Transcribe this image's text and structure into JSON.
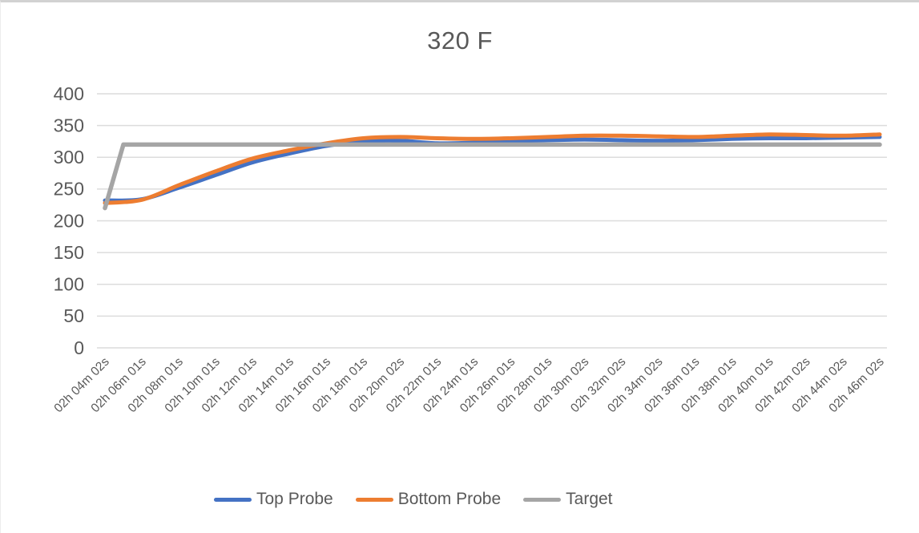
{
  "chart_data": {
    "type": "line",
    "title": "320 F",
    "xlabel": "",
    "ylabel": "",
    "ylim": [
      0,
      400
    ],
    "y_ticks": [
      0,
      50,
      100,
      150,
      200,
      250,
      300,
      350,
      400
    ],
    "grid": true,
    "legend_position": "bottom",
    "grid_color": "#dcdcdc",
    "text_color": "#595959",
    "categories": [
      "02h 04m 02s",
      "02h 06m 01s",
      "02h 08m 01s",
      "02h 10m 01s",
      "02h 12m 01s",
      "02h 14m 01s",
      "02h 16m 01s",
      "02h 18m 01s",
      "02h 20m 02s",
      "02h 22m 01s",
      "02h 24m 01s",
      "02h 26m 01s",
      "02h 28m 01s",
      "02h 30m 02s",
      "02h 32m 02s",
      "02h 34m 02s",
      "02h 36m 01s",
      "02h 38m 01s",
      "02h 40m 01s",
      "02h 42m 02s",
      "02h 44m 02s",
      "02h 46m 02s"
    ],
    "series": [
      {
        "name": "Top Probe",
        "color": "#4472C4",
        "width": 5,
        "smooth": true,
        "values": [
          232,
          234,
          252,
          272,
          292,
          306,
          318,
          325,
          326,
          322,
          323,
          325,
          327,
          328,
          327,
          326,
          327,
          329,
          330,
          330,
          331,
          332
        ]
      },
      {
        "name": "Bottom Probe",
        "color": "#ED7D31",
        "width": 5,
        "smooth": true,
        "values": [
          228,
          233,
          256,
          278,
          298,
          311,
          322,
          330,
          332,
          330,
          329,
          330,
          332,
          334,
          334,
          333,
          332,
          334,
          336,
          335,
          334,
          336
        ]
      },
      {
        "name": "Target",
        "color": "#A5A5A5",
        "width": 5.5,
        "smooth": false,
        "points": [
          {
            "i": 0,
            "v": 220
          },
          {
            "i": 0.5,
            "v": 320
          },
          {
            "i": 21,
            "v": 320
          }
        ]
      }
    ]
  }
}
